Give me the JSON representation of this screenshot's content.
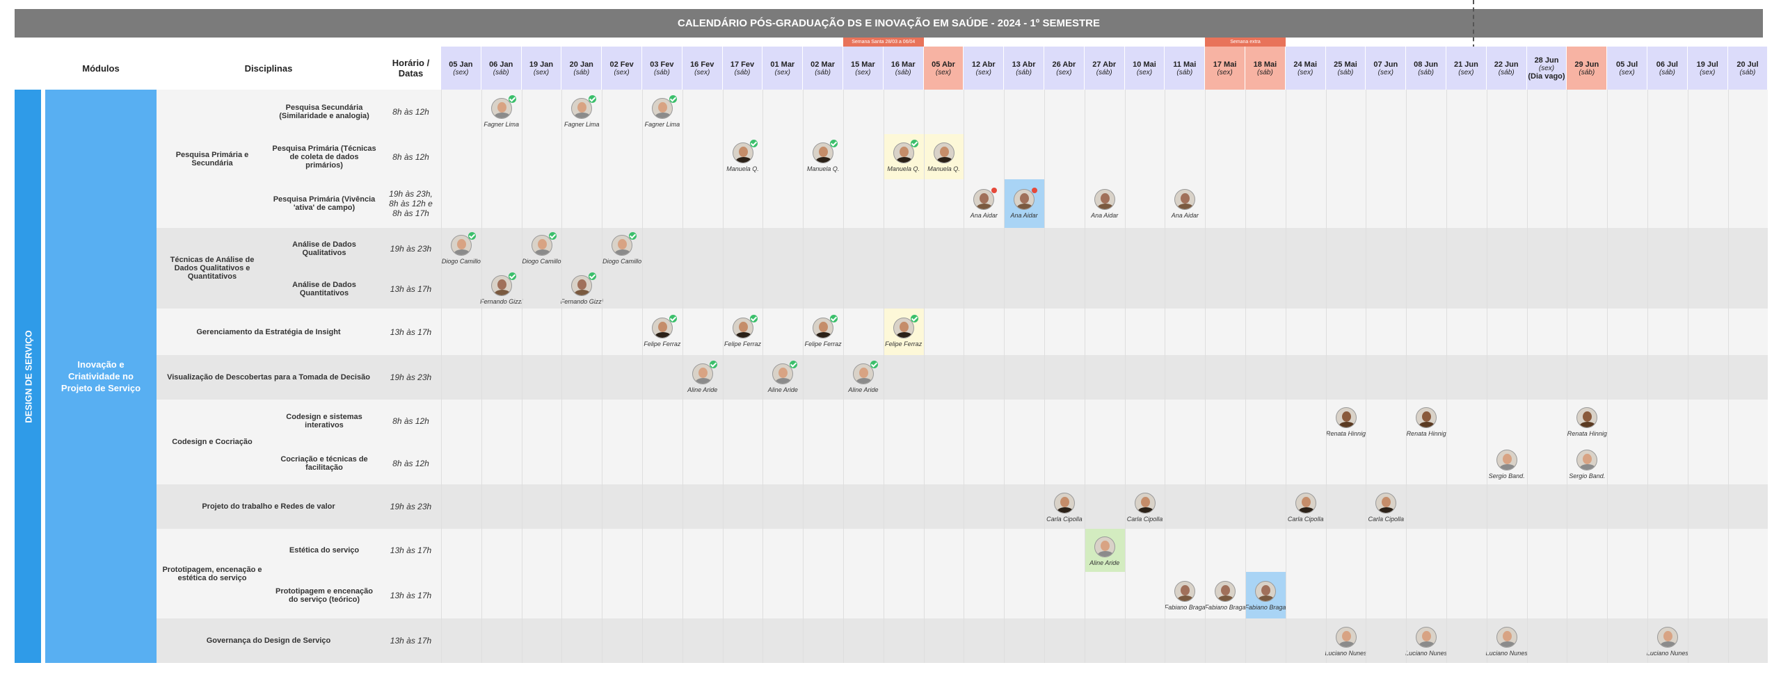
{
  "header": {
    "title": "CALENDÁRIO PÓS-GRADUAÇÃO DS E INOVAÇÃO EM SAÚDE - 2024 - 1º SEMESTRE",
    "col_modules": "Módulos",
    "col_disciplines": "Disciplinas",
    "col_hours": "Horário / Datas",
    "notes": [
      {
        "label": "Semana Santa 28/03 a 06/04",
        "from": "15 Mar",
        "to": "16 Mar"
      },
      {
        "label": "Semana extra",
        "from": "17 Mai",
        "to": "18 Mai"
      }
    ]
  },
  "dates": [
    {
      "day": "05 Jan",
      "weekday": "(sex)"
    },
    {
      "day": "06 Jan",
      "weekday": "(sáb)"
    },
    {
      "day": "19 Jan",
      "weekday": "(sex)"
    },
    {
      "day": "20 Jan",
      "weekday": "(sáb)"
    },
    {
      "day": "02 Fev",
      "weekday": "(sex)"
    },
    {
      "day": "03 Fev",
      "weekday": "(sáb)"
    },
    {
      "day": "16 Fev",
      "weekday": "(sex)"
    },
    {
      "day": "17 Fev",
      "weekday": "(sáb)"
    },
    {
      "day": "01 Mar",
      "weekday": "(sex)"
    },
    {
      "day": "02 Mar",
      "weekday": "(sáb)"
    },
    {
      "day": "15 Mar",
      "weekday": "(sex)"
    },
    {
      "day": "16 Mar",
      "weekday": "(sáb)"
    },
    {
      "day": "05 Abr",
      "weekday": "(sex)",
      "holiday": true
    },
    {
      "day": "12 Abr",
      "weekday": "(sex)"
    },
    {
      "day": "13 Abr",
      "weekday": "(sáb)"
    },
    {
      "day": "26 Abr",
      "weekday": "(sex)"
    },
    {
      "day": "27 Abr",
      "weekday": "(sáb)"
    },
    {
      "day": "10 Mai",
      "weekday": "(sex)"
    },
    {
      "day": "11 Mai",
      "weekday": "(sáb)"
    },
    {
      "day": "17 Mai",
      "weekday": "(sex)",
      "holiday": true
    },
    {
      "day": "18 Mai",
      "weekday": "(sáb)",
      "holiday": true
    },
    {
      "day": "24 Mai",
      "weekday": "(sex)"
    },
    {
      "day": "25 Mai",
      "weekday": "(sáb)"
    },
    {
      "day": "07 Jun",
      "weekday": "(sex)"
    },
    {
      "day": "08 Jun",
      "weekday": "(sáb)"
    },
    {
      "day": "21 Jun",
      "weekday": "(sex)"
    },
    {
      "day": "22 Jun",
      "weekday": "(sáb)"
    },
    {
      "day": "28 Jun",
      "weekday": "(sex)",
      "note": "(Dia vago)"
    },
    {
      "day": "29 Jun",
      "weekday": "(sáb)",
      "holiday": true
    },
    {
      "day": "05 Jul",
      "weekday": "(sex)"
    },
    {
      "day": "06 Jul",
      "weekday": "(sáb)"
    },
    {
      "day": "19 Jul",
      "weekday": "(sex)"
    },
    {
      "day": "20 Jul",
      "weekday": "(sáb)"
    }
  ],
  "area": "DESIGN DE SERVIÇO",
  "module": "Inovação e Criatividade no Projeto de Serviço",
  "groups": [
    {
      "label": "Pesquisa Primária e Secundária",
      "rows": [
        {
          "discipline": "Pesquisa Secundária (Similaridade e analogia)",
          "hours": "8h às 12h",
          "sessions": [
            {
              "date": "06 Jan",
              "instructor": "Fagner Lima",
              "done": true
            },
            {
              "date": "20 Jan",
              "instructor": "Fagner Lima",
              "done": true
            },
            {
              "date": "03 Fev",
              "instructor": "Fagner Lima",
              "done": true
            }
          ]
        },
        {
          "discipline": "Pesquisa Primária (Técnicas de coleta de dados primários)",
          "hours": "8h às 12h",
          "sessions": [
            {
              "date": "17 Fev",
              "instructor": "Manuela Q.",
              "done": true
            },
            {
              "date": "02 Mar",
              "instructor": "Manuela Q.",
              "done": true
            },
            {
              "date": "16 Mar",
              "instructor": "Manuela Q.",
              "done": true,
              "highlight": "#fdf8d8"
            },
            {
              "date": "05 Abr",
              "instructor": "Manuela Q.",
              "highlight": "#fdf8d8"
            }
          ]
        },
        {
          "discipline": "Pesquisa Primária (Vivência 'ativa' de campo)",
          "hours": "19h às 23h, 8h às 12h e 8h às 17h",
          "sessions": [
            {
              "date": "12 Abr",
              "instructor": "Ana Aidar",
              "alert": true
            },
            {
              "date": "13 Abr",
              "instructor": "Ana Aidar",
              "alert": true,
              "highlight": "#a9d4f5"
            },
            {
              "date": "27 Abr",
              "instructor": "Ana Aidar"
            },
            {
              "date": "11 Mai",
              "instructor": "Ana Aidar"
            }
          ]
        }
      ]
    },
    {
      "label": "Técnicas de Análise de Dados Qualitativos e Quantitativos",
      "rows": [
        {
          "discipline": "Análise de Dados Qualitativos",
          "hours": "19h às 23h",
          "sessions": [
            {
              "date": "05 Jan",
              "instructor": "Diogo Camillo",
              "done": true
            },
            {
              "date": "19 Jan",
              "instructor": "Diogo Camillo",
              "done": true
            },
            {
              "date": "02 Fev",
              "instructor": "Diogo Camillo",
              "done": true
            }
          ]
        },
        {
          "discipline": "Análise de Dados Quantitativos",
          "hours": "13h às 17h",
          "sessions": [
            {
              "date": "06 Jan",
              "instructor": "Fernando Gizzi",
              "done": true
            },
            {
              "date": "20 Jan",
              "instructor": "Fernando Gizzi",
              "done": true
            }
          ]
        }
      ]
    },
    {
      "rows": [
        {
          "discipline": "Gerenciamento da Estratégia de Insight",
          "hours": "13h às 17h",
          "sessions": [
            {
              "date": "03 Fev",
              "instructor": "Felipe Ferraz",
              "done": true
            },
            {
              "date": "17 Fev",
              "instructor": "Felipe Ferraz",
              "done": true
            },
            {
              "date": "02 Mar",
              "instructor": "Felipe Ferraz",
              "done": true
            },
            {
              "date": "16 Mar",
              "instructor": "Felipe Ferraz",
              "done": true,
              "highlight": "#fdf8d8"
            }
          ]
        }
      ]
    },
    {
      "rows": [
        {
          "discipline": "Visualização de Descobertas para a Tomada de Decisão",
          "hours": "19h às 23h",
          "sessions": [
            {
              "date": "16 Fev",
              "instructor": "Aline Aride",
              "done": true
            },
            {
              "date": "01 Mar",
              "instructor": "Aline Aride",
              "done": true
            },
            {
              "date": "15 Mar",
              "instructor": "Aline Aride",
              "done": true
            }
          ]
        }
      ]
    },
    {
      "label": "Codesign e Cocriação",
      "rows": [
        {
          "discipline": "Codesign e sistemas interativos",
          "hours": "8h às 12h",
          "sessions": [
            {
              "date": "25 Mai",
              "instructor": "Renata Hinnig"
            },
            {
              "date": "08 Jun",
              "instructor": "Renata Hinnig"
            },
            {
              "date": "29 Jun",
              "instructor": "Renata Hinnig"
            }
          ]
        },
        {
          "discipline": "Cocriação e técnicas de facilitação",
          "hours": "8h às 12h",
          "sessions": [
            {
              "date": "22 Jun",
              "instructor": "Sergio Band."
            },
            {
              "date": "29 Jun",
              "instructor": "Sergio Band."
            }
          ]
        }
      ]
    },
    {
      "rows": [
        {
          "discipline": "Projeto do trabalho e Redes de valor",
          "hours": "19h às 23h",
          "sessions": [
            {
              "date": "26 Abr",
              "instructor": "Carla Cipolla"
            },
            {
              "date": "10 Mai",
              "instructor": "Carla Cipolla"
            },
            {
              "date": "24 Mai",
              "instructor": "Carla Cipolla"
            },
            {
              "date": "07 Jun",
              "instructor": "Carla Cipolla"
            }
          ]
        }
      ]
    },
    {
      "label": "Prototipagem, encenação e estética do serviço",
      "rows": [
        {
          "discipline": "Estética do serviço",
          "hours": "13h às 17h",
          "sessions": [
            {
              "date": "27 Abr",
              "instructor": "Aline Aride",
              "highlight": "#d3ecc0"
            }
          ]
        },
        {
          "discipline": "Prototipagem e encenação do serviço (teórico)",
          "hours": "13h às 17h",
          "sessions": [
            {
              "date": "11 Mai",
              "instructor": "Fabiano Braga"
            },
            {
              "date": "17 Mai",
              "instructor": "Fabiano Braga"
            },
            {
              "date": "18 Mai",
              "instructor": "Fabiano Braga",
              "highlight": "#a9d4f5"
            }
          ]
        }
      ]
    },
    {
      "rows": [
        {
          "discipline": "Governança do Design de Serviço",
          "hours": "13h às 17h",
          "sessions": [
            {
              "date": "25 Mai",
              "instructor": "Luciano Nunes"
            },
            {
              "date": "08 Jun",
              "instructor": "Luciano Nunes"
            },
            {
              "date": "22 Jun",
              "instructor": "Luciano Nunes"
            },
            {
              "date": "06 Jul",
              "instructor": "Luciano Nunes"
            }
          ]
        }
      ]
    }
  ]
}
